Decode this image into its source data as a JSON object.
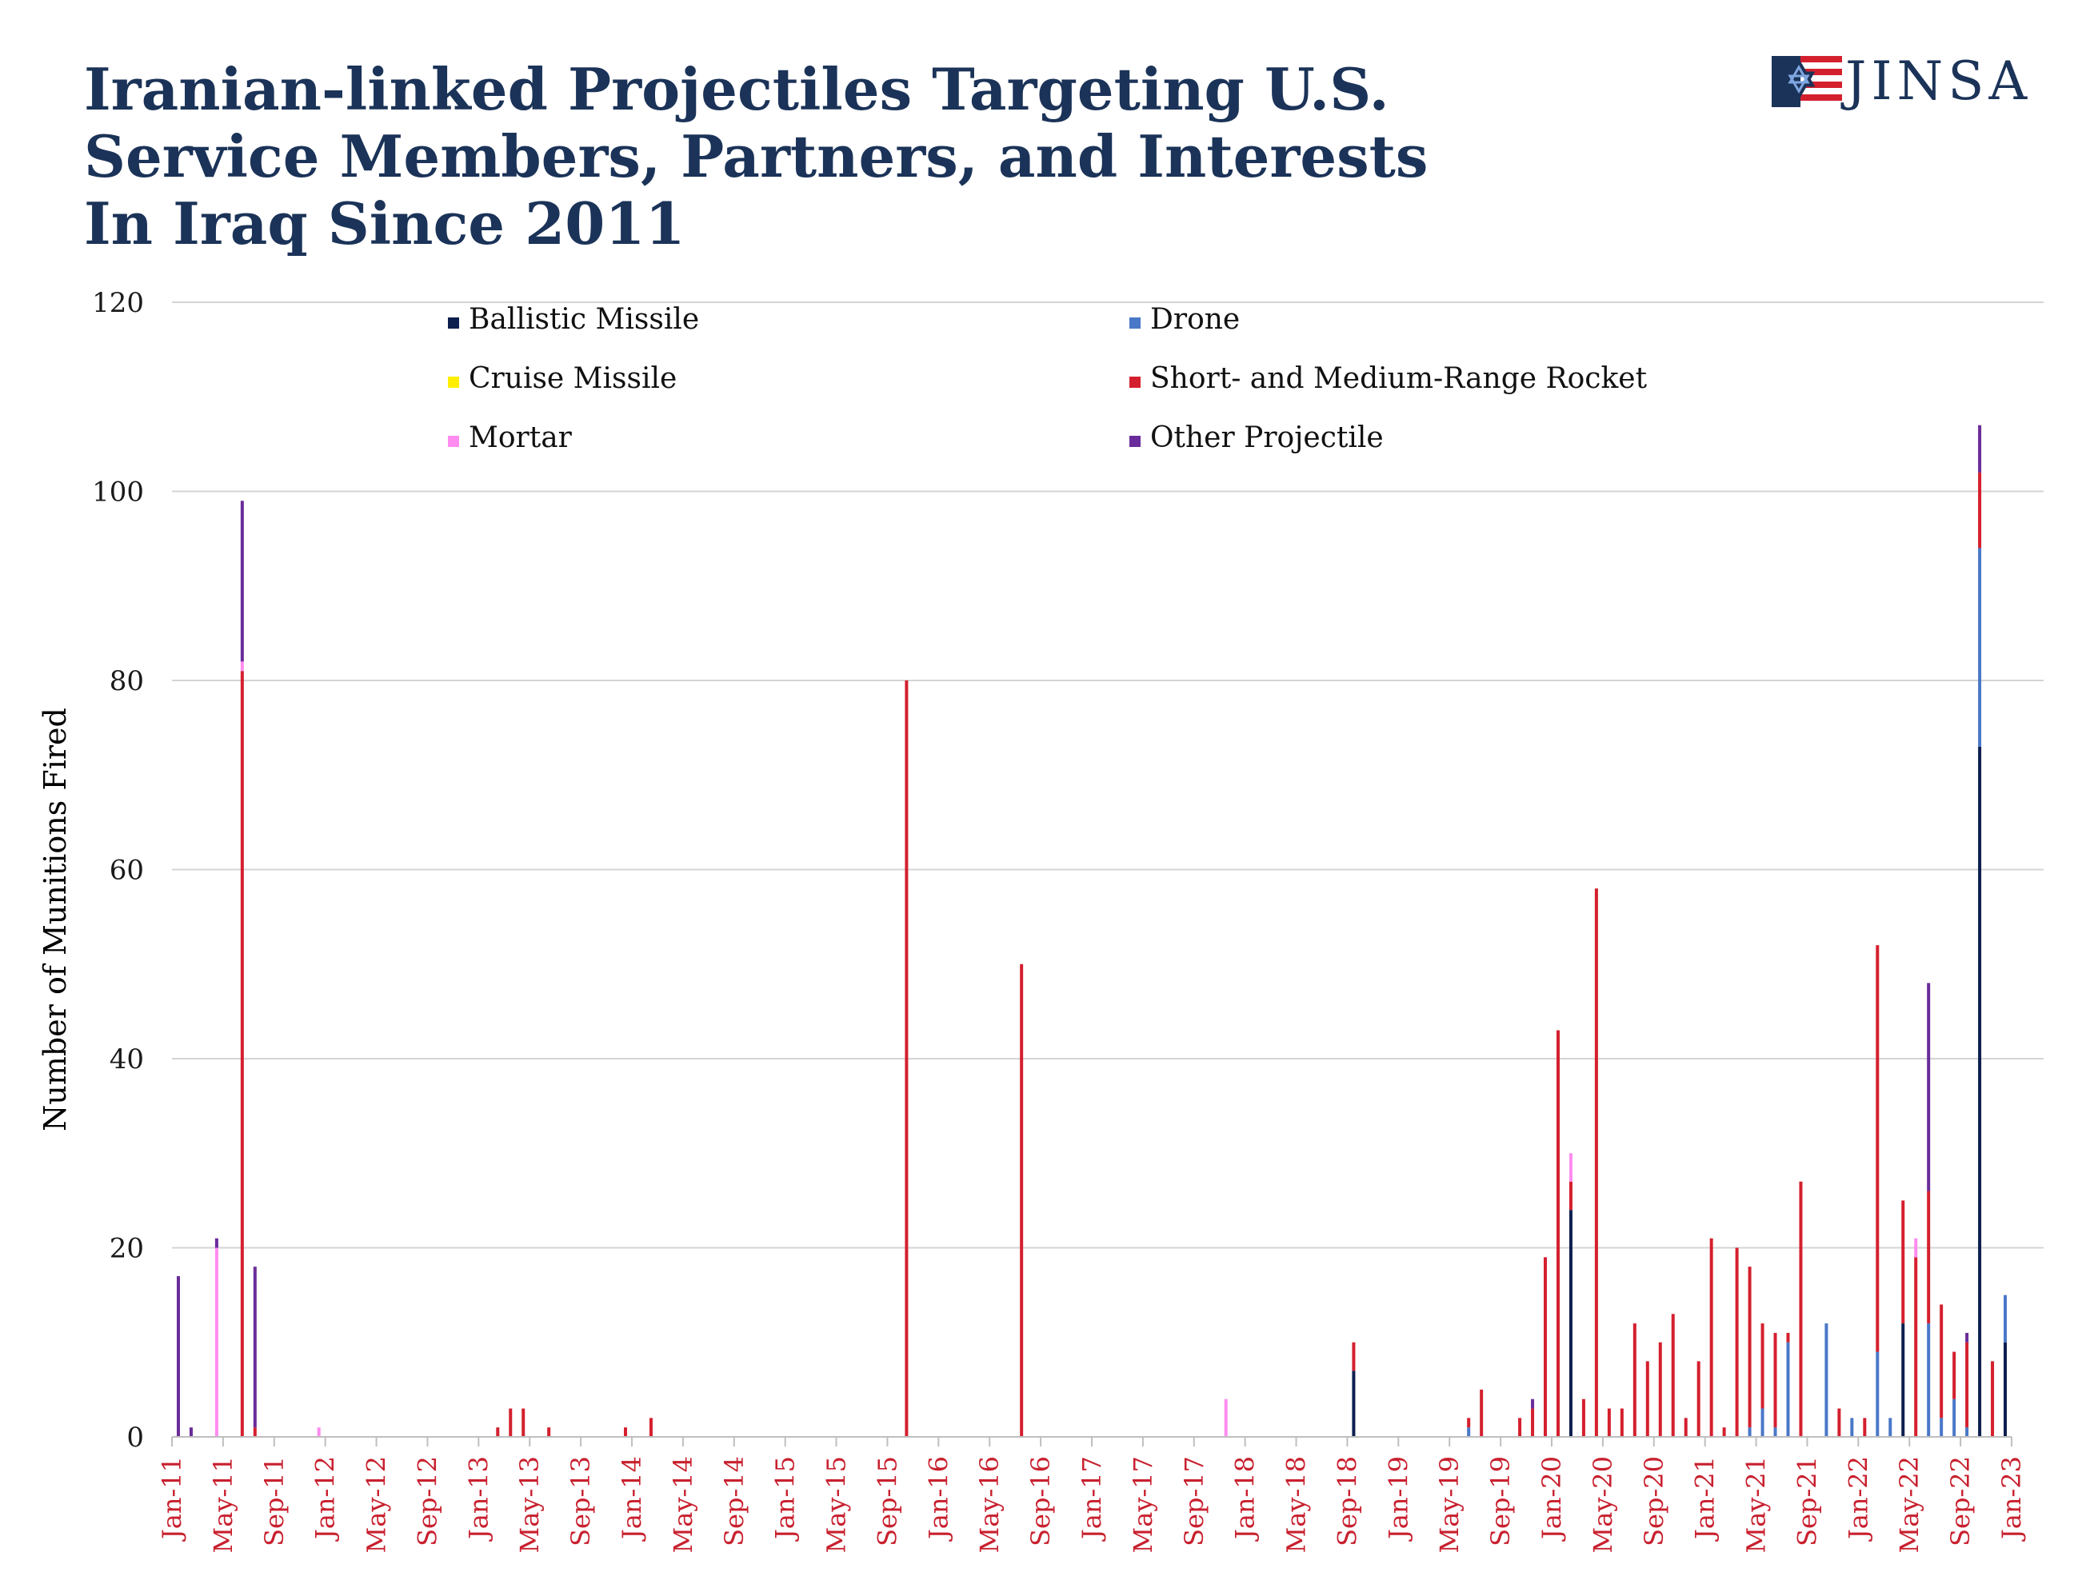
{
  "title": {
    "lines": [
      "Iranian-linked Projectiles Targeting U.S.",
      "Service Members, Partners, and Interests",
      "In Iraq Since 2011"
    ]
  },
  "logo": {
    "text": "JINSA",
    "icon": "star-of-david-flag-icon"
  },
  "chart_data": {
    "type": "bar",
    "stacked": true,
    "title": "Iranian-linked Projectiles Targeting U.S. Service Members, Partners, and Interests In Iraq Since 2011",
    "ylabel": "Number of Munitions Fired",
    "xlabel": "",
    "ylim": [
      0,
      120
    ],
    "yticks": [
      0,
      20,
      40,
      60,
      80,
      100,
      120
    ],
    "grid": true,
    "legend_position": "top",
    "x_start": "2011-01",
    "x_end": "2023-01",
    "xticks": [
      "Jan-11",
      "May-11",
      "Sep-11",
      "Jan-12",
      "May-12",
      "Sep-12",
      "Jan-13",
      "May-13",
      "Sep-13",
      "Jan-14",
      "May-14",
      "Sep-14",
      "Jan-15",
      "May-15",
      "Sep-15",
      "Jan-16",
      "May-16",
      "Sep-16",
      "Jan-17",
      "May-17",
      "Sep-17",
      "Jan-18",
      "May-18",
      "Sep-18",
      "Jan-19",
      "May-19",
      "Sep-19",
      "Jan-20",
      "May-20",
      "Sep-20",
      "Jan-21",
      "May-21",
      "Sep-21",
      "Jan-22",
      "May-22",
      "Sep-22",
      "Jan-23"
    ],
    "series": [
      {
        "key": "ballistic",
        "name": "Ballistic Missile",
        "color": "#0d1f4f"
      },
      {
        "key": "drone",
        "name": "Drone",
        "color": "#4a78c8"
      },
      {
        "key": "cruise",
        "name": "Cruise Missile",
        "color": "#ffee00"
      },
      {
        "key": "rocket",
        "name": "Short- and Medium-Range Rocket",
        "color": "#d4202e"
      },
      {
        "key": "mortar",
        "name": "Mortar",
        "color": "#ff8cf0"
      },
      {
        "key": "other",
        "name": "Other Projectile",
        "color": "#6a2c9a"
      }
    ],
    "bars": [
      {
        "month": "2011-01",
        "ballistic": 0,
        "drone": 0,
        "cruise": 0,
        "rocket": 0,
        "mortar": 0,
        "other": 17
      },
      {
        "month": "2011-02",
        "ballistic": 0,
        "drone": 0,
        "cruise": 0,
        "rocket": 0,
        "mortar": 0,
        "other": 1
      },
      {
        "month": "2011-04",
        "ballistic": 0,
        "drone": 0,
        "cruise": 0,
        "rocket": 0,
        "mortar": 20,
        "other": 1
      },
      {
        "month": "2011-06",
        "ballistic": 0,
        "drone": 0,
        "cruise": 0,
        "rocket": 81,
        "mortar": 1,
        "other": 17
      },
      {
        "month": "2011-07",
        "ballistic": 0,
        "drone": 0,
        "cruise": 0,
        "rocket": 1,
        "mortar": 0,
        "other": 17
      },
      {
        "month": "2011-12",
        "ballistic": 0,
        "drone": 0,
        "cruise": 0,
        "rocket": 0,
        "mortar": 1,
        "other": 0
      },
      {
        "month": "2013-02",
        "ballistic": 0,
        "drone": 0,
        "cruise": 0,
        "rocket": 1,
        "mortar": 0,
        "other": 0
      },
      {
        "month": "2013-03",
        "ballistic": 0,
        "drone": 0,
        "cruise": 0,
        "rocket": 3,
        "mortar": 0,
        "other": 0
      },
      {
        "month": "2013-04",
        "ballistic": 0,
        "drone": 0,
        "cruise": 0,
        "rocket": 3,
        "mortar": 0,
        "other": 0
      },
      {
        "month": "2013-06",
        "ballistic": 0,
        "drone": 0,
        "cruise": 0,
        "rocket": 1,
        "mortar": 0,
        "other": 0
      },
      {
        "month": "2013-12",
        "ballistic": 0,
        "drone": 0,
        "cruise": 0,
        "rocket": 1,
        "mortar": 0,
        "other": 0
      },
      {
        "month": "2014-02",
        "ballistic": 0,
        "drone": 0,
        "cruise": 0,
        "rocket": 2,
        "mortar": 0,
        "other": 0
      },
      {
        "month": "2015-10",
        "ballistic": 0,
        "drone": 0,
        "cruise": 0,
        "rocket": 80,
        "mortar": 0,
        "other": 0
      },
      {
        "month": "2016-07",
        "ballistic": 0,
        "drone": 0,
        "cruise": 0,
        "rocket": 50,
        "mortar": 0,
        "other": 0
      },
      {
        "month": "2017-11",
        "ballistic": 0,
        "drone": 0,
        "cruise": 0,
        "rocket": 0,
        "mortar": 4,
        "other": 0
      },
      {
        "month": "2018-09",
        "ballistic": 7,
        "drone": 0,
        "cruise": 0,
        "rocket": 3,
        "mortar": 0,
        "other": 0
      },
      {
        "month": "2019-06",
        "ballistic": 0,
        "drone": 1,
        "cruise": 0,
        "rocket": 1,
        "mortar": 0,
        "other": 0
      },
      {
        "month": "2019-07",
        "ballistic": 0,
        "drone": 0,
        "cruise": 0,
        "rocket": 5,
        "mortar": 0,
        "other": 0
      },
      {
        "month": "2019-10",
        "ballistic": 0,
        "drone": 0,
        "cruise": 0,
        "rocket": 2,
        "mortar": 0,
        "other": 0
      },
      {
        "month": "2019-11",
        "ballistic": 0,
        "drone": 0,
        "cruise": 0,
        "rocket": 3,
        "mortar": 0,
        "other": 1
      },
      {
        "month": "2019-12",
        "ballistic": 0,
        "drone": 0,
        "cruise": 0,
        "rocket": 19,
        "mortar": 0,
        "other": 0
      },
      {
        "month": "2020-01",
        "ballistic": 0,
        "drone": 0,
        "cruise": 0,
        "rocket": 43,
        "mortar": 0,
        "other": 0
      },
      {
        "month": "2020-02",
        "ballistic": 24,
        "drone": 0,
        "cruise": 0,
        "rocket": 3,
        "mortar": 3,
        "other": 0
      },
      {
        "month": "2020-03",
        "ballistic": 0,
        "drone": 0,
        "cruise": 0,
        "rocket": 4,
        "mortar": 0,
        "other": 0
      },
      {
        "month": "2020-04",
        "ballistic": 0,
        "drone": 0,
        "cruise": 0,
        "rocket": 58,
        "mortar": 0,
        "other": 0
      },
      {
        "month": "2020-05",
        "ballistic": 0,
        "drone": 0,
        "cruise": 0,
        "rocket": 3,
        "mortar": 0,
        "other": 0
      },
      {
        "month": "2020-06",
        "ballistic": 0,
        "drone": 0,
        "cruise": 0,
        "rocket": 3,
        "mortar": 0,
        "other": 0
      },
      {
        "month": "2020-07",
        "ballistic": 0,
        "drone": 0,
        "cruise": 0,
        "rocket": 12,
        "mortar": 0,
        "other": 0
      },
      {
        "month": "2020-08",
        "ballistic": 0,
        "drone": 0,
        "cruise": 0,
        "rocket": 8,
        "mortar": 0,
        "other": 0
      },
      {
        "month": "2020-09",
        "ballistic": 0,
        "drone": 0,
        "cruise": 0,
        "rocket": 10,
        "mortar": 0,
        "other": 0
      },
      {
        "month": "2020-10",
        "ballistic": 0,
        "drone": 0,
        "cruise": 0,
        "rocket": 13,
        "mortar": 0,
        "other": 0
      },
      {
        "month": "2020-11",
        "ballistic": 0,
        "drone": 0,
        "cruise": 0,
        "rocket": 2,
        "mortar": 0,
        "other": 0
      },
      {
        "month": "2020-12",
        "ballistic": 0,
        "drone": 0,
        "cruise": 0,
        "rocket": 8,
        "mortar": 0,
        "other": 0
      },
      {
        "month": "2021-01",
        "ballistic": 0,
        "drone": 0,
        "cruise": 0,
        "rocket": 21,
        "mortar": 0,
        "other": 0
      },
      {
        "month": "2021-02",
        "ballistic": 0,
        "drone": 0,
        "cruise": 0,
        "rocket": 1,
        "mortar": 0,
        "other": 0
      },
      {
        "month": "2021-03",
        "ballistic": 0,
        "drone": 0,
        "cruise": 0,
        "rocket": 20,
        "mortar": 0,
        "other": 0
      },
      {
        "month": "2021-04",
        "ballistic": 0,
        "drone": 1,
        "cruise": 0,
        "rocket": 17,
        "mortar": 0,
        "other": 0
      },
      {
        "month": "2021-05",
        "ballistic": 0,
        "drone": 3,
        "cruise": 0,
        "rocket": 9,
        "mortar": 0,
        "other": 0
      },
      {
        "month": "2021-06",
        "ballistic": 0,
        "drone": 1,
        "cruise": 0,
        "rocket": 10,
        "mortar": 0,
        "other": 0
      },
      {
        "month": "2021-07",
        "ballistic": 0,
        "drone": 10,
        "cruise": 0,
        "rocket": 1,
        "mortar": 0,
        "other": 0
      },
      {
        "month": "2021-08",
        "ballistic": 0,
        "drone": 0,
        "cruise": 0,
        "rocket": 27,
        "mortar": 0,
        "other": 0
      },
      {
        "month": "2021-10",
        "ballistic": 0,
        "drone": 12,
        "cruise": 0,
        "rocket": 0,
        "mortar": 0,
        "other": 0
      },
      {
        "month": "2021-11",
        "ballistic": 0,
        "drone": 0,
        "cruise": 0,
        "rocket": 3,
        "mortar": 0,
        "other": 0
      },
      {
        "month": "2021-12",
        "ballistic": 0,
        "drone": 2,
        "cruise": 0,
        "rocket": 0,
        "mortar": 0,
        "other": 0
      },
      {
        "month": "2022-01",
        "ballistic": 0,
        "drone": 0,
        "cruise": 0,
        "rocket": 2,
        "mortar": 0,
        "other": 0
      },
      {
        "month": "2022-02",
        "ballistic": 0,
        "drone": 9,
        "cruise": 0,
        "rocket": 43,
        "mortar": 0,
        "other": 0
      },
      {
        "month": "2022-03",
        "ballistic": 0,
        "drone": 2,
        "cruise": 0,
        "rocket": 0,
        "mortar": 0,
        "other": 0
      },
      {
        "month": "2022-04",
        "ballistic": 12,
        "drone": 0,
        "cruise": 0,
        "rocket": 13,
        "mortar": 0,
        "other": 0
      },
      {
        "month": "2022-05",
        "ballistic": 0,
        "drone": 0,
        "cruise": 0,
        "rocket": 19,
        "mortar": 2,
        "other": 0
      },
      {
        "month": "2022-06",
        "ballistic": 0,
        "drone": 12,
        "cruise": 0,
        "rocket": 14,
        "mortar": 0,
        "other": 22
      },
      {
        "month": "2022-07",
        "ballistic": 0,
        "drone": 2,
        "cruise": 0,
        "rocket": 12,
        "mortar": 0,
        "other": 0
      },
      {
        "month": "2022-08",
        "ballistic": 0,
        "drone": 4,
        "cruise": 0,
        "rocket": 5,
        "mortar": 0,
        "other": 0
      },
      {
        "month": "2022-09",
        "ballistic": 0,
        "drone": 1,
        "cruise": 0,
        "rocket": 9,
        "mortar": 0,
        "other": 1
      },
      {
        "month": "2022-10",
        "ballistic": 73,
        "drone": 21,
        "cruise": 0,
        "rocket": 8,
        "mortar": 0,
        "other": 5
      },
      {
        "month": "2022-11",
        "ballistic": 0,
        "drone": 0,
        "cruise": 0,
        "rocket": 8,
        "mortar": 0,
        "other": 0
      },
      {
        "month": "2022-12",
        "ballistic": 10,
        "drone": 5,
        "cruise": 0,
        "rocket": 0,
        "mortar": 0,
        "other": 0
      }
    ]
  }
}
